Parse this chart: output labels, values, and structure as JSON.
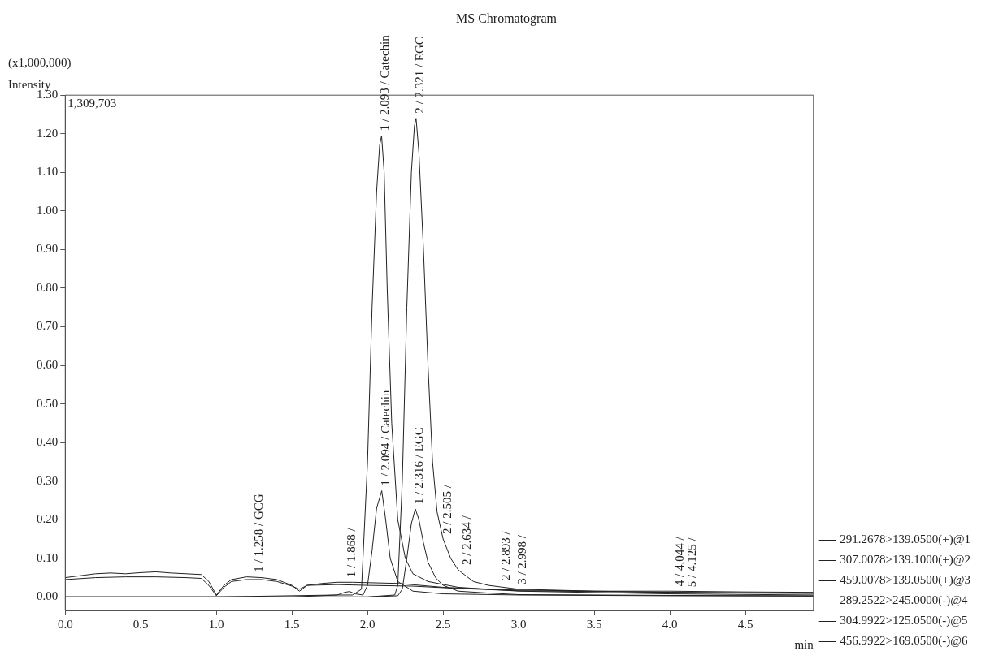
{
  "chart_data": {
    "type": "line",
    "title": "MS Chromatogram",
    "xlabel": "min",
    "ylabel": "Intensity",
    "legend": "right",
    "marker": "none",
    "line_style": "solid",
    "xlim": [
      0,
      4.95
    ],
    "xticks": [
      {
        "value": 0,
        "label": "0.0"
      },
      {
        "value": 0.5,
        "label": "0.5"
      },
      {
        "value": 1,
        "label": "1.0"
      },
      {
        "value": 1.5,
        "label": "1.5"
      },
      {
        "value": 2,
        "label": "2.0"
      },
      {
        "value": 2.5,
        "label": "2.5"
      },
      {
        "value": 3,
        "label": "3.0"
      },
      {
        "value": 3.5,
        "label": "3.5"
      },
      {
        "value": 4,
        "label": "4.0"
      },
      {
        "value": 4.5,
        "label": "4.5"
      }
    ],
    "ylim": [
      -0.035,
      1.3
    ],
    "yticks": [
      {
        "value": 0,
        "label": "0.00"
      },
      {
        "value": 0.1,
        "label": "0.10"
      },
      {
        "value": 0.2,
        "label": "0.20"
      },
      {
        "value": 0.3,
        "label": "0.30"
      },
      {
        "value": 0.4,
        "label": "0.40"
      },
      {
        "value": 0.5,
        "label": "0.50"
      },
      {
        "value": 0.6,
        "label": "0.60"
      },
      {
        "value": 0.7,
        "label": "0.70"
      },
      {
        "value": 0.8,
        "label": "0.80"
      },
      {
        "value": 0.9,
        "label": "0.90"
      },
      {
        "value": 1,
        "label": "1.00"
      },
      {
        "value": 1.1,
        "label": "1.10"
      },
      {
        "value": 1.2,
        "label": "1.20"
      },
      {
        "value": 1.3,
        "label": "1.30"
      }
    ],
    "annotations": [
      "1,309,703",
      "(x1,000,000)",
      {
        "text": "1 / 2.093 / Catechin",
        "x": 2.093,
        "y": 1.195
      },
      {
        "text": "2 / 2.321 / EGC",
        "x": 2.321,
        "y": 1.24
      },
      {
        "text": "1 / 2.094 / Catechin",
        "x": 2.094,
        "y": 0.275
      },
      {
        "text": "1 / 2.316 / EGC",
        "x": 2.316,
        "y": 0.228
      },
      {
        "text": "1 / 1.258 / GCG",
        "x": 1.258,
        "y": 0.052
      },
      {
        "text": "1 / 1.868 /",
        "x": 1.868,
        "y": 0.038
      },
      {
        "text": "2 / 2.505 /",
        "x": 2.505,
        "y": 0.15
      },
      {
        "text": "2 / 2.634 /",
        "x": 2.634,
        "y": 0.07
      },
      {
        "text": "2 / 2.893 /",
        "x": 2.893,
        "y": 0.03
      },
      {
        "text": "3 / 2.998 /",
        "x": 2.998,
        "y": 0.02
      },
      {
        "text": "4 / 4.044 /",
        "x": 4.044,
        "y": 0.015
      },
      {
        "text": "5 / 4.125 /",
        "x": 4.125,
        "y": 0.013
      }
    ],
    "series": [
      {
        "name": "291.2678>139.0500(+)@1",
        "color": "#222222",
        "x": [
          0,
          1.0,
          1.5,
          1.8,
          1.9,
          1.96,
          2.0,
          2.03,
          2.06,
          2.08,
          2.093,
          2.11,
          2.13,
          2.16,
          2.2,
          2.25,
          2.3,
          2.4,
          2.6,
          3.0,
          4.0,
          4.95
        ],
        "values": [
          0,
          0,
          0,
          0.005,
          0.005,
          0.02,
          0.35,
          0.75,
          1.05,
          1.17,
          1.195,
          1.1,
          0.8,
          0.45,
          0.2,
          0.1,
          0.06,
          0.04,
          0.025,
          0.015,
          0.008,
          0.005
        ]
      },
      {
        "name": "307.0078>139.1000(+)@2",
        "color": "#222222",
        "x": [
          0,
          1.0,
          2.0,
          2.18,
          2.2,
          2.23,
          2.26,
          2.29,
          2.31,
          2.321,
          2.34,
          2.37,
          2.4,
          2.43,
          2.46,
          2.5,
          2.55,
          2.6,
          2.7,
          2.8,
          3.0,
          3.5,
          4.0,
          4.95
        ],
        "values": [
          0,
          0,
          0,
          0.005,
          0.03,
          0.3,
          0.75,
          1.1,
          1.22,
          1.24,
          1.15,
          0.9,
          0.6,
          0.35,
          0.22,
          0.15,
          0.1,
          0.07,
          0.04,
          0.03,
          0.02,
          0.015,
          0.012,
          0.01
        ]
      },
      {
        "name": "459.0078>139.0500(+)@3",
        "color": "#222222",
        "x": [
          0,
          0.1,
          0.2,
          0.3,
          0.4,
          0.5,
          0.6,
          0.7,
          0.8,
          0.9,
          0.95,
          1.0,
          1.05,
          1.1,
          1.2,
          1.3,
          1.4,
          1.5,
          1.55,
          1.6,
          1.7,
          1.8,
          1.9,
          2.0,
          2.2,
          2.5,
          2.8,
          3.0,
          3.5,
          4.0,
          4.5,
          4.95
        ],
        "values": [
          0.05,
          0.055,
          0.06,
          0.062,
          0.06,
          0.063,
          0.065,
          0.062,
          0.06,
          0.058,
          0.04,
          0.005,
          0.03,
          0.045,
          0.052,
          0.05,
          0.045,
          0.03,
          0.015,
          0.03,
          0.035,
          0.038,
          0.038,
          0.037,
          0.035,
          0.025,
          0.02,
          0.018,
          0.015,
          0.015,
          0.013,
          0.012
        ]
      },
      {
        "name": "289.2522>245.0000(-)@4",
        "color": "#222222",
        "x": [
          0,
          1.0,
          1.8,
          1.85,
          1.88,
          1.92,
          1.97,
          2.0,
          2.03,
          2.06,
          2.094,
          2.12,
          2.15,
          2.2,
          2.3,
          2.5,
          3.0,
          4.0,
          4.95
        ],
        "values": [
          0,
          0,
          0.005,
          0.012,
          0.014,
          0.008,
          0.005,
          0.03,
          0.12,
          0.23,
          0.275,
          0.2,
          0.1,
          0.04,
          0.015,
          0.008,
          0.005,
          0.003,
          0.002
        ]
      },
      {
        "name": "304.9922>125.0500(-)@5",
        "color": "#222222",
        "x": [
          0,
          2.0,
          2.2,
          2.23,
          2.26,
          2.29,
          2.316,
          2.34,
          2.37,
          2.4,
          2.45,
          2.5,
          2.6,
          2.8,
          3.0,
          4.0,
          4.95
        ],
        "values": [
          0,
          0,
          0.003,
          0.02,
          0.1,
          0.19,
          0.228,
          0.2,
          0.14,
          0.09,
          0.05,
          0.03,
          0.015,
          0.01,
          0.006,
          0.004,
          0.003
        ]
      },
      {
        "name": "456.9922>169.0500(-)@6",
        "color": "#222222",
        "x": [
          0,
          0.2,
          0.4,
          0.6,
          0.8,
          0.9,
          0.95,
          1.0,
          1.05,
          1.1,
          1.2,
          1.3,
          1.4,
          1.5,
          1.55,
          1.6,
          1.8,
          2.0,
          2.3,
          2.6,
          3.0,
          3.5,
          4.0,
          4.5,
          4.95
        ],
        "values": [
          0.045,
          0.05,
          0.052,
          0.052,
          0.05,
          0.048,
          0.03,
          0.003,
          0.025,
          0.04,
          0.045,
          0.045,
          0.04,
          0.028,
          0.02,
          0.03,
          0.032,
          0.03,
          0.028,
          0.022,
          0.016,
          0.014,
          0.012,
          0.01,
          0.009
        ]
      }
    ]
  }
}
